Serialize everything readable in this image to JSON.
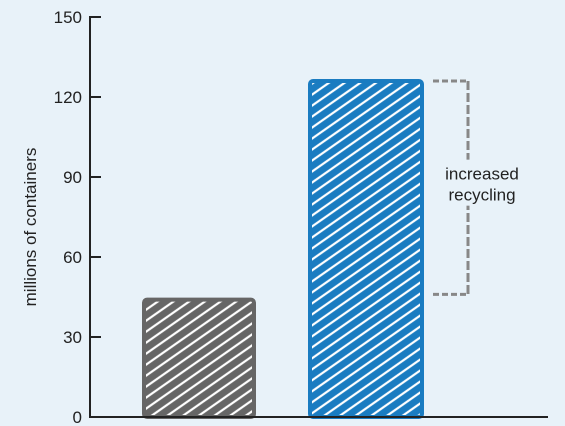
{
  "chart_data": {
    "type": "bar",
    "title": "",
    "xlabel": "",
    "ylabel": "millions of containers",
    "ylim": [
      0,
      150
    ],
    "yticks": [
      0,
      30,
      60,
      90,
      120,
      150
    ],
    "categories": [
      "",
      ""
    ],
    "values": [
      44,
      126
    ],
    "colors": [
      "#666666",
      "#1a7cc1"
    ],
    "grid": false,
    "annotation": {
      "lines": [
        "increased",
        "recycling"
      ],
      "from_value": 46,
      "to_value": 126,
      "color": "#888888"
    }
  }
}
